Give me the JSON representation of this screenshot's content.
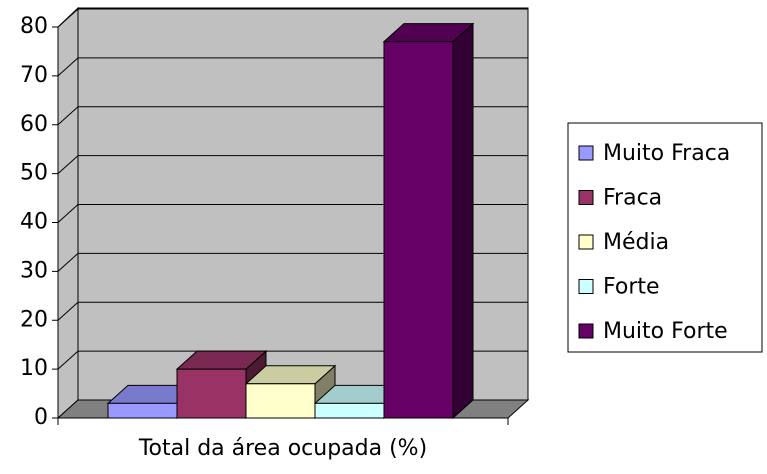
{
  "chart_data": {
    "type": "bar3d",
    "categories": [
      "Total da área ocupada (%)"
    ],
    "series": [
      {
        "name": "Muito Fraca",
        "color": "#9999ff",
        "values": [
          3
        ]
      },
      {
        "name": "Fraca",
        "color": "#993366",
        "values": [
          10
        ]
      },
      {
        "name": "Média",
        "color": "#ffffcc",
        "values": [
          7
        ]
      },
      {
        "name": "Forte",
        "color": "#ccffff",
        "values": [
          3
        ]
      },
      {
        "name": "Muito Forte",
        "color": "#660066",
        "values": [
          77
        ]
      }
    ],
    "ylim": [
      0,
      80
    ],
    "yticks": [
      0,
      10,
      20,
      30,
      40,
      50,
      60,
      70,
      80
    ],
    "grid": true,
    "legend": "right"
  }
}
